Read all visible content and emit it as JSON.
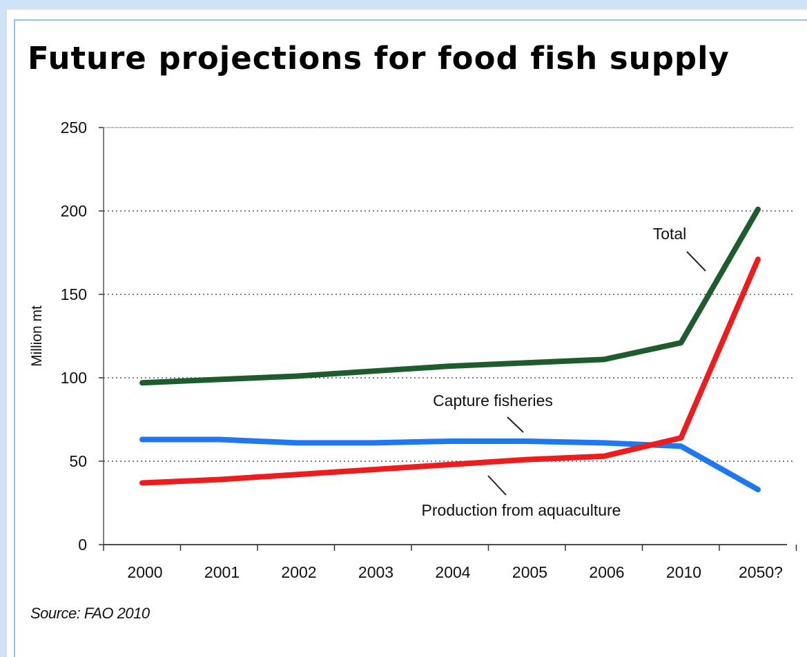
{
  "chart_data": {
    "type": "line",
    "title": "Future projections for food fish supply",
    "xlabel": "",
    "ylabel": "Million mt",
    "categories": [
      "2000",
      "2001",
      "2002",
      "2003",
      "2004",
      "2005",
      "2006",
      "2010",
      "2050?"
    ],
    "y_ticks": [
      "0",
      "50",
      "100",
      "150",
      "200",
      "250"
    ],
    "ylim": [
      0,
      250
    ],
    "grid": "horizontal dotted",
    "legend": "inline annotations",
    "series": [
      {
        "name": "Total",
        "color": "#1e5c2e",
        "values": [
          97,
          99,
          101,
          104,
          107,
          109,
          111,
          121,
          201
        ]
      },
      {
        "name": "Capture fisheries",
        "color": "#1f78f0",
        "values": [
          63,
          63,
          61,
          61,
          62,
          62,
          61,
          59,
          33
        ]
      },
      {
        "name": "Production from aquaculture",
        "color": "#ee1c1c",
        "values": [
          37,
          39,
          42,
          45,
          48,
          51,
          53,
          64,
          171
        ]
      }
    ],
    "source": "Source: FAO 2010"
  }
}
